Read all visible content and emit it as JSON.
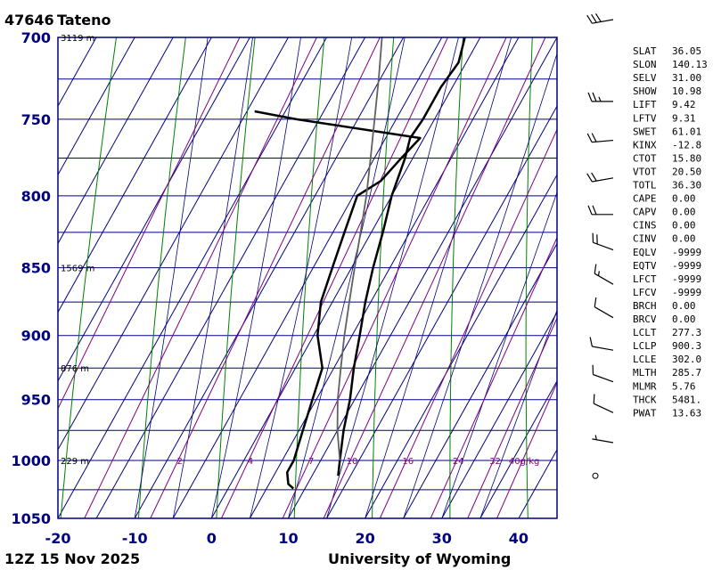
{
  "header": {
    "station_id": "47646",
    "station_name": "Tateno",
    "timestamp": "12Z 15 Nov 2025",
    "source": "University of Wyoming"
  },
  "colors": {
    "frame": "#000080",
    "isobar": "#000080",
    "isotherm": "#000080",
    "dry_adiabat": "#008000",
    "moist_adiabat": "#000080",
    "mixing_ratio": "#800080",
    "temperature": "#000000",
    "dewpoint": "#000000",
    "parcel": "#606060"
  },
  "chart_data": {
    "type": "line",
    "chart_kind": "skew-T log-P diagram",
    "x_axis": {
      "label": "",
      "range": [
        -20,
        45
      ],
      "ticks": [
        -20,
        -10,
        0,
        10,
        20,
        30,
        40
      ],
      "tick_labels": [
        "-20",
        "-10",
        "0",
        "10",
        "20",
        "30",
        "40"
      ]
    },
    "y_axis": {
      "label": "",
      "range": [
        1050,
        700
      ],
      "scale": "log",
      "ticks": [
        700,
        750,
        800,
        850,
        900,
        950,
        1000,
        1050
      ],
      "tick_labels": [
        "700",
        "750",
        "800",
        "850",
        "900",
        "950",
        "1000",
        "1050"
      ]
    },
    "height_labels": [
      {
        "pressure": 700,
        "text": "3119 m"
      },
      {
        "pressure": 850,
        "text": "1569 m"
      },
      {
        "pressure": 925,
        "text": "876 m"
      },
      {
        "pressure": 1000,
        "text": "229 m"
      }
    ],
    "mixing_ratio_labels": [
      "2",
      "4",
      "7",
      "10",
      "16",
      "24",
      "32",
      "40g/kg"
    ],
    "series": [
      {
        "points": [
          [
            1013,
            13.4
          ],
          [
            1000,
            12.5
          ],
          [
            975,
            10.8
          ],
          [
            950,
            9.4
          ],
          [
            925,
            7.6
          ],
          [
            900,
            6.0
          ],
          [
            875,
            4.3
          ],
          [
            850,
            2.8
          ],
          [
            825,
            1.5
          ],
          [
            800,
            0.0
          ],
          [
            775,
            -1.0
          ],
          [
            762,
            -1.8
          ],
          [
            750,
            -1.5
          ],
          [
            730,
            -1.5
          ],
          [
            715,
            -1.0
          ],
          [
            700,
            -2.0
          ]
        ]
      },
      {
        "points": [
          [
            1024,
            8.5
          ],
          [
            1020,
            7.5
          ],
          [
            1010,
            6.5
          ],
          [
            1000,
            6.5
          ],
          [
            975,
            5.5
          ],
          [
            950,
            4.5
          ],
          [
            925,
            3.5
          ],
          [
            900,
            0.5
          ],
          [
            875,
            -1.5
          ],
          [
            850,
            -2.5
          ],
          [
            825,
            -3.5
          ],
          [
            800,
            -4.5
          ],
          [
            790,
            -2.5
          ],
          [
            775,
            -1.5
          ],
          [
            762,
            -0.5
          ],
          [
            750,
            -18.0
          ],
          [
            745,
            -24.0
          ]
        ]
      },
      {
        "points": [
          [
            1000,
            12.5
          ],
          [
            975,
            10.0
          ],
          [
            950,
            7.8
          ],
          [
            925,
            5.9
          ],
          [
            900,
            4.0
          ],
          [
            875,
            2.2
          ],
          [
            850,
            0.4
          ],
          [
            825,
            -1.4
          ],
          [
            800,
            -3.3
          ],
          [
            775,
            -5.5
          ],
          [
            750,
            -7.8
          ],
          [
            725,
            -10.2
          ],
          [
            700,
            -12.8
          ]
        ]
      }
    ],
    "wind_barbs": [
      {
        "pressure": 1000,
        "direction": 280,
        "speed": 5
      },
      {
        "pressure": 1013,
        "direction": 0,
        "speed": 0
      },
      {
        "pressure": 975,
        "direction": 295,
        "speed": 10
      },
      {
        "pressure": 950,
        "direction": 290,
        "speed": 10
      },
      {
        "pressure": 925,
        "direction": 280,
        "speed": 10
      },
      {
        "pressure": 900,
        "direction": 300,
        "speed": 10
      },
      {
        "pressure": 875,
        "direction": 300,
        "speed": 15
      },
      {
        "pressure": 850,
        "direction": 290,
        "speed": 20
      },
      {
        "pressure": 825,
        "direction": 270,
        "speed": 20
      },
      {
        "pressure": 800,
        "direction": 260,
        "speed": 20
      },
      {
        "pressure": 775,
        "direction": 265,
        "speed": 20
      },
      {
        "pressure": 750,
        "direction": 270,
        "speed": 25
      },
      {
        "pressure": 700,
        "direction": 260,
        "speed": 30
      }
    ]
  },
  "indices": [
    {
      "name": "SLAT",
      "value": "36.05"
    },
    {
      "name": "SLON",
      "value": "140.13"
    },
    {
      "name": "SELV",
      "value": "31.00"
    },
    {
      "name": "SHOW",
      "value": "10.98"
    },
    {
      "name": "LIFT",
      "value": "9.42"
    },
    {
      "name": "LFTV",
      "value": "9.31"
    },
    {
      "name": "SWET",
      "value": "61.01"
    },
    {
      "name": "KINX",
      "value": "-12.8"
    },
    {
      "name": "CTOT",
      "value": "15.80"
    },
    {
      "name": "VTOT",
      "value": "20.50"
    },
    {
      "name": "TOTL",
      "value": "36.30"
    },
    {
      "name": "CAPE",
      "value": "0.00"
    },
    {
      "name": "CAPV",
      "value": "0.00"
    },
    {
      "name": "CINS",
      "value": "0.00"
    },
    {
      "name": "CINV",
      "value": "0.00"
    },
    {
      "name": "EQLV",
      "value": "-9999"
    },
    {
      "name": "EQTV",
      "value": "-9999"
    },
    {
      "name": "LFCT",
      "value": "-9999"
    },
    {
      "name": "LFCV",
      "value": "-9999"
    },
    {
      "name": "BRCH",
      "value": "0.00"
    },
    {
      "name": "BRCV",
      "value": "0.00"
    },
    {
      "name": "LCLT",
      "value": "277.3"
    },
    {
      "name": "LCLP",
      "value": "900.3"
    },
    {
      "name": "LCLE",
      "value": "302.0"
    },
    {
      "name": "MLTH",
      "value": "285.7"
    },
    {
      "name": "MLMR",
      "value": "5.76"
    },
    {
      "name": "THCK",
      "value": "5481."
    },
    {
      "name": "PWAT",
      "value": "13.63"
    }
  ]
}
